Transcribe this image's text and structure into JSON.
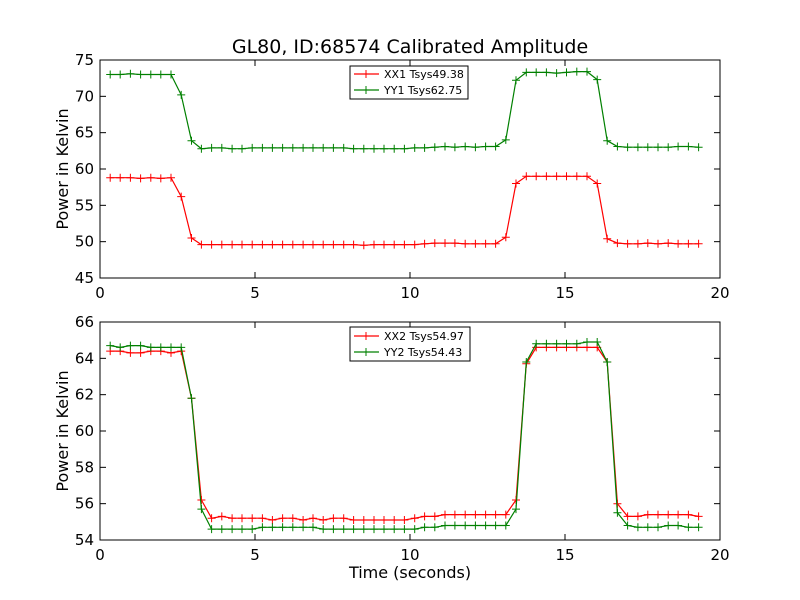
{
  "title": "GL80, ID:68574 Calibrated Amplitude",
  "chart_data": [
    {
      "type": "line",
      "ylabel": "Power in Kelvin",
      "xlabel": "",
      "xlim": [
        0,
        20
      ],
      "ylim": [
        45,
        75
      ],
      "xticks": [
        "0",
        "5",
        "10",
        "15",
        "20"
      ],
      "yticks": [
        "45",
        "50",
        "55",
        "60",
        "65",
        "70",
        "75"
      ],
      "legend_position": "top-center",
      "x": [
        0.33,
        0.65,
        0.98,
        1.31,
        1.64,
        1.96,
        2.29,
        2.62,
        2.95,
        3.27,
        3.6,
        3.93,
        4.26,
        4.58,
        4.91,
        5.24,
        5.56,
        5.89,
        6.22,
        6.55,
        6.87,
        7.2,
        7.53,
        7.86,
        8.18,
        8.51,
        8.84,
        9.16,
        9.49,
        9.82,
        10.15,
        10.47,
        10.8,
        11.13,
        11.45,
        11.78,
        12.11,
        12.44,
        12.76,
        13.09,
        13.42,
        13.75,
        14.07,
        14.4,
        14.73,
        15.05,
        15.38,
        15.71,
        16.04,
        16.36,
        16.69,
        17.02,
        17.35,
        17.67,
        18.0,
        18.33,
        18.65,
        18.98,
        19.31
      ],
      "series": [
        {
          "name": "XX1 Tsys49.38",
          "color": "#ff0000",
          "values": [
            58.8,
            58.8,
            58.8,
            58.7,
            58.8,
            58.7,
            58.8,
            56.2,
            50.5,
            49.6,
            49.6,
            49.6,
            49.6,
            49.6,
            49.6,
            49.6,
            49.6,
            49.6,
            49.6,
            49.6,
            49.6,
            49.6,
            49.6,
            49.6,
            49.6,
            49.5,
            49.6,
            49.6,
            49.6,
            49.6,
            49.6,
            49.7,
            49.8,
            49.8,
            49.8,
            49.7,
            49.7,
            49.7,
            49.7,
            50.6,
            58.0,
            59.0,
            59.0,
            59.0,
            59.0,
            59.0,
            59.0,
            59.0,
            58.0,
            50.4,
            49.8,
            49.7,
            49.7,
            49.8,
            49.7,
            49.8,
            49.7,
            49.7,
            49.7
          ]
        },
        {
          "name": "YY1 Tsys62.75",
          "color": "#008000",
          "values": [
            73.0,
            73.0,
            73.1,
            73.0,
            73.0,
            73.0,
            73.0,
            70.2,
            63.9,
            62.8,
            62.9,
            62.9,
            62.8,
            62.8,
            62.9,
            62.9,
            62.9,
            62.9,
            62.9,
            62.9,
            62.9,
            62.9,
            62.9,
            62.9,
            62.8,
            62.8,
            62.8,
            62.8,
            62.8,
            62.8,
            62.9,
            62.9,
            63.0,
            63.1,
            63.0,
            63.1,
            63.0,
            63.1,
            63.1,
            64.0,
            72.2,
            73.3,
            73.3,
            73.3,
            73.2,
            73.3,
            73.4,
            73.4,
            72.3,
            63.9,
            63.1,
            63.0,
            63.0,
            63.0,
            63.0,
            63.0,
            63.1,
            63.1,
            63.0
          ]
        }
      ]
    },
    {
      "type": "line",
      "ylabel": "Power in Kelvin",
      "xlabel": "Time (seconds)",
      "xlim": [
        0,
        20
      ],
      "ylim": [
        54,
        66
      ],
      "xticks": [
        "0",
        "5",
        "10",
        "15",
        "20"
      ],
      "yticks": [
        "54",
        "56",
        "58",
        "60",
        "62",
        "64",
        "66"
      ],
      "legend_position": "top-center",
      "x": [
        0.33,
        0.65,
        0.98,
        1.31,
        1.64,
        1.96,
        2.29,
        2.62,
        2.95,
        3.27,
        3.6,
        3.93,
        4.26,
        4.58,
        4.91,
        5.24,
        5.56,
        5.89,
        6.22,
        6.55,
        6.87,
        7.2,
        7.53,
        7.86,
        8.18,
        8.51,
        8.84,
        9.16,
        9.49,
        9.82,
        10.15,
        10.47,
        10.8,
        11.13,
        11.45,
        11.78,
        12.11,
        12.44,
        12.76,
        13.09,
        13.42,
        13.75,
        14.07,
        14.4,
        14.73,
        15.05,
        15.38,
        15.71,
        16.04,
        16.36,
        16.69,
        17.02,
        17.35,
        17.67,
        18.0,
        18.33,
        18.65,
        18.98,
        19.31
      ],
      "series": [
        {
          "name": "XX2 Tsys54.97",
          "color": "#ff0000",
          "values": [
            64.4,
            64.4,
            64.3,
            64.3,
            64.4,
            64.4,
            64.3,
            64.4,
            61.8,
            56.2,
            55.2,
            55.3,
            55.2,
            55.2,
            55.2,
            55.2,
            55.1,
            55.2,
            55.2,
            55.1,
            55.2,
            55.1,
            55.2,
            55.2,
            55.1,
            55.1,
            55.1,
            55.1,
            55.1,
            55.1,
            55.2,
            55.3,
            55.3,
            55.4,
            55.4,
            55.4,
            55.4,
            55.4,
            55.4,
            55.4,
            56.2,
            63.7,
            64.6,
            64.6,
            64.6,
            64.6,
            64.6,
            64.6,
            64.6,
            63.8,
            56.0,
            55.3,
            55.3,
            55.4,
            55.4,
            55.4,
            55.4,
            55.4,
            55.3
          ],
          "x_override_note": ""
        },
        {
          "name": "YY2 Tsys54.43",
          "color": "#008000",
          "values": [
            64.7,
            64.6,
            64.7,
            64.7,
            64.6,
            64.6,
            64.6,
            64.6,
            61.8,
            55.7,
            54.6,
            54.6,
            54.6,
            54.6,
            54.6,
            54.7,
            54.7,
            54.7,
            54.7,
            54.7,
            54.7,
            54.6,
            54.6,
            54.6,
            54.6,
            54.6,
            54.6,
            54.6,
            54.6,
            54.6,
            54.6,
            54.7,
            54.7,
            54.8,
            54.8,
            54.8,
            54.8,
            54.8,
            54.8,
            54.8,
            55.7,
            63.8,
            64.8,
            64.8,
            64.8,
            64.8,
            64.8,
            64.9,
            64.9,
            63.8,
            55.5,
            54.8,
            54.7,
            54.7,
            54.7,
            54.8,
            54.8,
            54.7,
            54.7
          ]
        }
      ]
    }
  ]
}
